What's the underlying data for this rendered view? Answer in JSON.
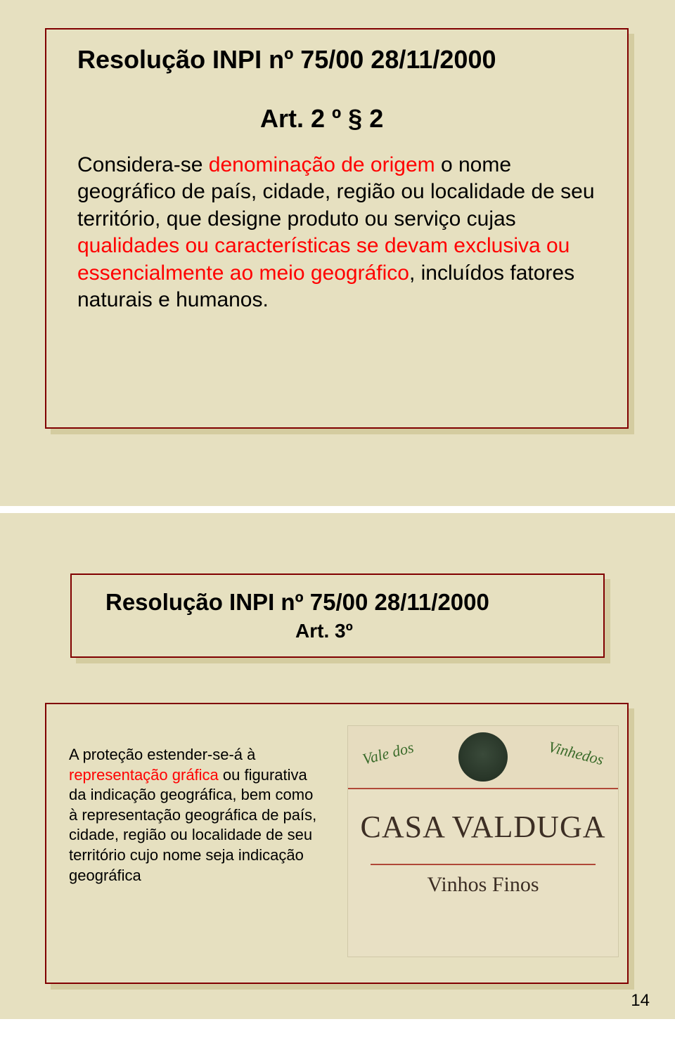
{
  "slide1": {
    "title": "Resolução INPI nº 75/00 28/11/2000",
    "subtitle": "Art. 2 º § 2",
    "body_parts": {
      "p1": "Considera-se ",
      "r1": "denominação de origem",
      "p2": " o nome geográfico de país, cidade, região ou localidade de seu território, que designe produto ou serviço cujas ",
      "r2": "qualidades ou características se devam exclusiva ou essencialmente ao meio geográfico",
      "p3": ", incluídos fatores naturais e humanos."
    },
    "colors": {
      "border": "#800000",
      "bg": "#e6e0c0",
      "red": "#ff0000"
    }
  },
  "slide2": {
    "title": "Resolução INPI nº 75/00 28/11/2000",
    "subtitle": "Art. 3º",
    "body_parts": {
      "p1": "A proteção estender-se-á à ",
      "r1": "representação gráfica",
      "p2": " ou figurativa da indicação geográfica, bem como à representação geográfica de país, cidade, região ou localidade de seu território cujo nome seja indicação geográfica"
    },
    "label": {
      "arc_left": "Vale dos",
      "arc_right": "Vinhedos",
      "brand": "CASA VALDUGA",
      "sub": "Vinhos Finos",
      "line_color": "#b04838",
      "text_color": "#3c2e24",
      "arc_color": "#3a6b2a",
      "bg": "#e8e0c4"
    },
    "colors": {
      "border": "#800000",
      "bg": "#e6e0c0",
      "red": "#ff0000"
    }
  },
  "page_number": "14"
}
